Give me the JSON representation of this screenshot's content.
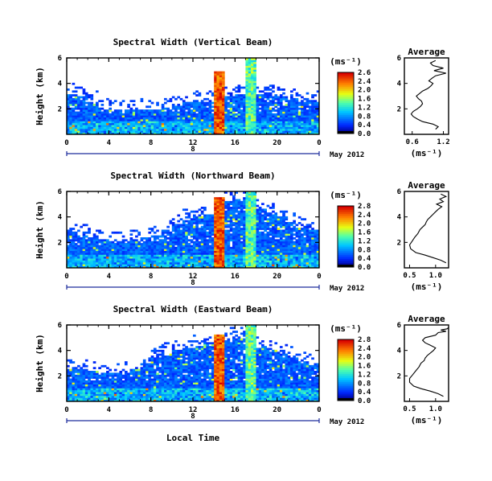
{
  "figure": {
    "xlabel": "Local Time",
    "date_label": "May 2012",
    "colorbar_units": "(ms⁻¹)"
  },
  "chart_data": [
    {
      "type": "heatmap",
      "title": "Spectral Width (Vertical Beam)",
      "ylabel": "Height (km)",
      "xlabel": "Local Time",
      "xlim": [
        0,
        24
      ],
      "ylim": [
        0,
        6
      ],
      "x_ticks": [
        "0",
        "4",
        "8",
        "12",
        "16",
        "20",
        "0"
      ],
      "y_ticks": [
        "2",
        "4",
        "6"
      ],
      "day_marker": "8",
      "date": "May 2012",
      "colorbar": {
        "units": "(ms⁻¹)",
        "min": 0.0,
        "max": 2.6,
        "labels": [
          "2.6",
          "2.4",
          "2.0",
          "1.6",
          "1.2",
          "0.8",
          "0.4",
          "0.0"
        ]
      },
      "cloud_top_km": [
        3.2,
        3.0,
        2.6,
        2.0,
        1.9,
        1.9,
        1.9,
        2.0,
        2.0,
        2.1,
        2.2,
        2.5,
        2.6,
        2.6,
        2.8,
        3.0,
        3.2,
        3.2,
        3.2,
        3.2,
        3.0,
        2.8,
        2.6,
        2.6
      ],
      "spike_1": {
        "x": 14.5,
        "top_km": 5.0,
        "peak_ms": 2.6
      },
      "spike_2": {
        "x": 17.5,
        "top_km": 6.0,
        "peak_ms": 1.8
      }
    },
    {
      "type": "heatmap",
      "title": "Spectral Width (Northward Beam)",
      "ylabel": "Height (km)",
      "xlabel": "Local Time",
      "xlim": [
        0,
        24
      ],
      "ylim": [
        0,
        6
      ],
      "x_ticks": [
        "0",
        "4",
        "8",
        "12",
        "16",
        "20",
        "0"
      ],
      "y_ticks": [
        "2",
        "4",
        "6"
      ],
      "day_marker": "8",
      "date": "May 2012",
      "colorbar": {
        "units": "(ms⁻¹)",
        "min": 0.0,
        "max": 2.8,
        "labels": [
          "2.8",
          "2.4",
          "2.0",
          "1.6",
          "1.2",
          "0.8",
          "0.4",
          "0.0"
        ]
      },
      "cloud_top_km": [
        2.8,
        2.6,
        2.4,
        2.2,
        2.1,
        2.1,
        2.2,
        2.4,
        2.6,
        3.0,
        3.5,
        3.8,
        4.0,
        4.2,
        4.6,
        5.2,
        5.4,
        5.0,
        4.6,
        4.4,
        4.0,
        3.6,
        3.2,
        3.0
      ],
      "spike_1": {
        "x": 14.5,
        "top_km": 5.6,
        "peak_ms": 2.8
      },
      "spike_2": {
        "x": 17.5,
        "top_km": 6.0,
        "peak_ms": 1.8
      }
    },
    {
      "type": "heatmap",
      "title": "Spectral Width (Eastward Beam)",
      "ylabel": "Height (km)",
      "xlabel": "Local Time",
      "xlim": [
        0,
        24
      ],
      "ylim": [
        0,
        6
      ],
      "x_ticks": [
        "0",
        "4",
        "8",
        "12",
        "16",
        "20",
        "0"
      ],
      "y_ticks": [
        "2",
        "4",
        "6"
      ],
      "day_marker": "8",
      "date": "May 2012",
      "colorbar": {
        "units": "(ms⁻¹)",
        "min": 0.0,
        "max": 2.8,
        "labels": [
          "2.8",
          "2.4",
          "2.0",
          "1.6",
          "1.2",
          "0.8",
          "0.4",
          "0.0"
        ]
      },
      "cloud_top_km": [
        2.6,
        2.5,
        2.4,
        2.2,
        2.2,
        2.3,
        2.6,
        3.0,
        3.5,
        3.8,
        4.0,
        4.2,
        4.4,
        4.6,
        4.8,
        5.0,
        5.0,
        4.8,
        4.4,
        4.0,
        3.8,
        3.5,
        3.2,
        3.0
      ],
      "spike_1": {
        "x": 14.5,
        "top_km": 5.2,
        "peak_ms": 2.8
      },
      "spike_2": {
        "x": 17.5,
        "top_km": 6.0,
        "peak_ms": 1.8
      }
    },
    {
      "type": "line",
      "title": "Average",
      "xlabel": "(ms⁻¹)",
      "ylabel": "Height (km)",
      "xlim": [
        0.45,
        1.3
      ],
      "ylim": [
        0,
        6
      ],
      "x_ticks": [
        0.6,
        1.2
      ],
      "x_tick_labels": [
        "0.6",
        "1.2"
      ],
      "y_ticks": [
        2,
        4,
        6
      ],
      "y_tick_labels": [
        "2",
        "4",
        "6"
      ],
      "x": [
        1.05,
        1.1,
        1.0,
        0.8,
        0.7,
        0.62,
        0.58,
        0.62,
        0.7,
        0.76,
        0.8,
        0.78,
        0.72,
        0.68,
        0.74,
        0.8,
        0.9,
        0.96,
        1.0,
        0.92,
        0.98,
        1.05,
        1.25,
        1.02,
        1.2,
        1.0,
        0.95,
        1.05
      ],
      "y": [
        0.4,
        0.6,
        0.8,
        1.0,
        1.2,
        1.4,
        1.6,
        1.8,
        2.0,
        2.2,
        2.4,
        2.6,
        2.8,
        3.0,
        3.2,
        3.4,
        3.6,
        3.8,
        4.0,
        4.2,
        4.4,
        4.6,
        4.8,
        5.0,
        5.2,
        5.4,
        5.6,
        5.8
      ]
    },
    {
      "type": "line",
      "title": "Average",
      "xlabel": "(ms⁻¹)",
      "ylabel": "Height (km)",
      "xlim": [
        0.4,
        1.25
      ],
      "ylim": [
        0,
        6
      ],
      "x_ticks": [
        0.5,
        1.0
      ],
      "x_tick_labels": [
        "0.5",
        "1.0"
      ],
      "y_ticks": [
        2,
        4,
        6
      ],
      "y_tick_labels": [
        "2",
        "4",
        "6"
      ],
      "x": [
        1.2,
        1.1,
        0.95,
        0.8,
        0.62,
        0.52,
        0.5,
        0.55,
        0.6,
        0.66,
        0.7,
        0.75,
        0.8,
        0.82,
        0.85,
        0.9,
        0.95,
        1.0,
        1.05,
        1.12,
        1.02,
        1.15,
        1.08,
        1.2,
        1.1
      ],
      "y": [
        0.4,
        0.6,
        0.8,
        1.0,
        1.2,
        1.5,
        1.8,
        2.1,
        2.4,
        2.7,
        3.0,
        3.2,
        3.4,
        3.6,
        3.8,
        4.0,
        4.2,
        4.4,
        4.6,
        4.8,
        5.0,
        5.2,
        5.4,
        5.6,
        5.8
      ]
    },
    {
      "type": "line",
      "title": "Average",
      "xlabel": "(ms⁻¹)",
      "ylabel": "Height (km)",
      "xlim": [
        0.4,
        1.25
      ],
      "ylim": [
        0,
        6
      ],
      "x_ticks": [
        0.5,
        1.0
      ],
      "x_tick_labels": [
        "0.5",
        "1.0"
      ],
      "y_ticks": [
        2,
        4,
        6
      ],
      "y_tick_labels": [
        "2",
        "4",
        "6"
      ],
      "x": [
        1.15,
        1.05,
        0.9,
        0.72,
        0.58,
        0.5,
        0.5,
        0.56,
        0.62,
        0.68,
        0.72,
        0.78,
        0.8,
        0.84,
        0.9,
        0.96,
        1.0,
        0.9,
        0.8,
        0.75,
        0.8,
        1.0,
        1.05,
        1.2,
        1.1,
        1.22,
        1.25
      ],
      "y": [
        0.4,
        0.6,
        0.8,
        1.0,
        1.2,
        1.5,
        1.8,
        2.1,
        2.4,
        2.7,
        3.0,
        3.2,
        3.4,
        3.6,
        3.8,
        4.0,
        4.2,
        4.4,
        4.6,
        4.8,
        5.0,
        5.2,
        5.4,
        5.5,
        5.6,
        5.7,
        5.8
      ]
    }
  ]
}
